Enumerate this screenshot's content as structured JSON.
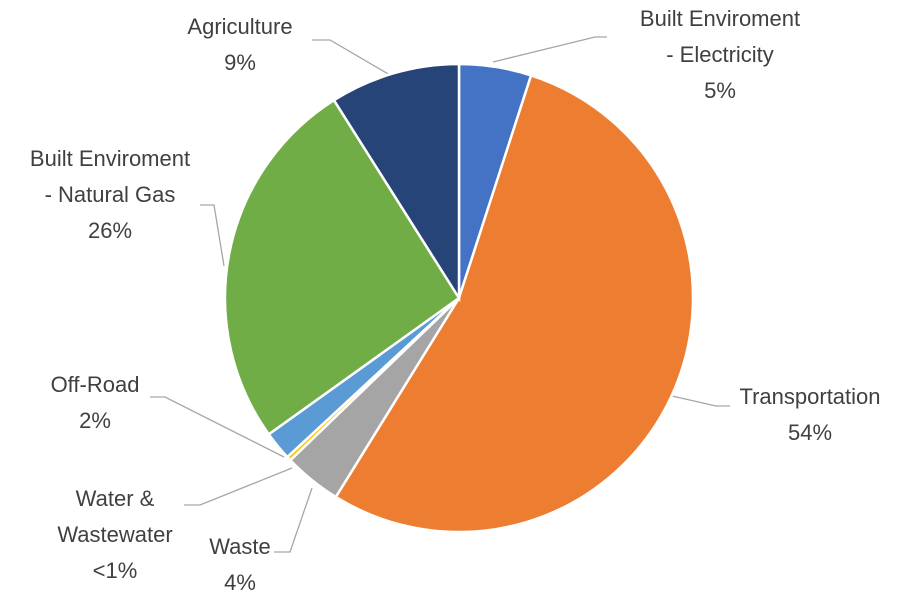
{
  "chart_data": {
    "type": "pie",
    "categories": [
      "Built Enviroment\n- Electricity",
      "Transportation",
      "Waste",
      "Water &\nWastewater",
      "Off-Road",
      "Built Enviroment\n- Natural Gas",
      "Agriculture"
    ],
    "values": [
      5,
      54,
      4,
      0.3,
      2,
      26,
      9
    ],
    "value_labels": [
      "5%",
      "54%",
      "4%",
      "<1%",
      "2%",
      "26%",
      "9%"
    ],
    "colors": [
      "#4472c4",
      "#ed7d31",
      "#a5a5a5",
      "#ffc000",
      "#5b9bd5",
      "#70ad47",
      "#264478"
    ]
  }
}
